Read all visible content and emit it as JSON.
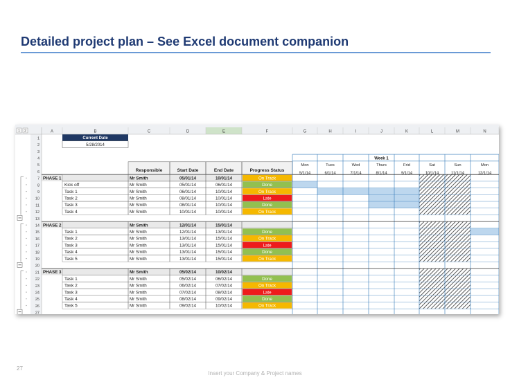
{
  "slide": {
    "title": "Detailed project plan – See Excel document companion",
    "page_number": "27",
    "footer": "Insert your Company & Project names"
  },
  "sheet": {
    "outline_levels": [
      "1",
      "2"
    ],
    "columns": [
      "A",
      "B",
      "C",
      "D",
      "E",
      "F",
      "G",
      "H",
      "I",
      "J",
      "K",
      "L",
      "M",
      "N"
    ],
    "current_date_label": "Current Date",
    "current_date_value": "5/28/2014",
    "week_label": "Week 1",
    "headers": [
      "Responsible",
      "Start Date",
      "End Date",
      "Progress Status"
    ],
    "days": [
      {
        "day": "Mon",
        "date": "5/1/14"
      },
      {
        "day": "Tues",
        "date": "6/1/14"
      },
      {
        "day": "Wed",
        "date": "7/1/14"
      },
      {
        "day": "Thurs",
        "date": "8/1/14"
      },
      {
        "day": "Frid",
        "date": "9/1/14"
      },
      {
        "day": "Sat",
        "date": "10/1/14"
      },
      {
        "day": "Sun",
        "date": "11/1/14"
      },
      {
        "day": "Mon",
        "date": "12/1/14"
      }
    ],
    "rows": [
      {
        "num": "1"
      },
      {
        "num": "2"
      },
      {
        "num": "3"
      },
      {
        "num": "4"
      },
      {
        "num": "5"
      },
      {
        "num": "6"
      },
      {
        "num": "7",
        "type": "phase",
        "name": "PHASE 1",
        "resp": "Mr Smith",
        "start": "05/01/14",
        "end": "10/01/14",
        "status": "On Track"
      },
      {
        "num": "8",
        "name": "Kick off",
        "resp": "Mr Smith",
        "start": "05/01/14",
        "end": "06/01/14",
        "status": "Done"
      },
      {
        "num": "9",
        "name": "Task 1",
        "resp": "Mr Smith",
        "start": "06/01/14",
        "end": "10/01/14",
        "status": "On Track"
      },
      {
        "num": "10",
        "name": "Task 2",
        "resp": "Mr Smith",
        "start": "08/01/14",
        "end": "10/01/14",
        "status": "Late"
      },
      {
        "num": "11",
        "name": "Task 3",
        "resp": "Mr Smith",
        "start": "08/01/14",
        "end": "10/01/14",
        "status": "Done"
      },
      {
        "num": "12",
        "name": "Task 4",
        "resp": "Mr Smith",
        "start": "10/01/14",
        "end": "10/01/14",
        "status": "On Track"
      },
      {
        "num": "13"
      },
      {
        "num": "14",
        "type": "phase",
        "name": "PHASE 2",
        "resp": "Mr Smith",
        "start": "12/01/14",
        "end": "15/01/14",
        "status": ""
      },
      {
        "num": "15",
        "name": "Task 1",
        "resp": "Mr Smith",
        "start": "12/01/14",
        "end": "13/01/14",
        "status": "Done"
      },
      {
        "num": "16",
        "name": "Task 2",
        "resp": "Mr Smith",
        "start": "13/01/14",
        "end": "15/01/14",
        "status": "On Track"
      },
      {
        "num": "17",
        "name": "Task 3",
        "resp": "Mr Smith",
        "start": "13/01/14",
        "end": "15/01/14",
        "status": "Late"
      },
      {
        "num": "18",
        "name": "Task 4",
        "resp": "Mr Smith",
        "start": "13/01/14",
        "end": "15/01/14",
        "status": "Done"
      },
      {
        "num": "19",
        "name": "Task 5",
        "resp": "Mr Smith",
        "start": "13/01/14",
        "end": "15/01/14",
        "status": "On Track"
      },
      {
        "num": "20"
      },
      {
        "num": "21",
        "type": "phase",
        "name": "PHASE 3",
        "resp": "Mr Smith",
        "start": "05/02/14",
        "end": "10/02/14",
        "status": ""
      },
      {
        "num": "22",
        "name": "Task 1",
        "resp": "Mr Smith",
        "start": "05/02/14",
        "end": "06/02/14",
        "status": "Done"
      },
      {
        "num": "23",
        "name": "Task 2",
        "resp": "Mr Smith",
        "start": "06/02/14",
        "end": "07/02/14",
        "status": "On Track"
      },
      {
        "num": "24",
        "name": "Task 3",
        "resp": "Mr Smith",
        "start": "07/02/14",
        "end": "08/02/14",
        "status": "Late"
      },
      {
        "num": "25",
        "name": "Task 4",
        "resp": "Mr Smith",
        "start": "08/02/14",
        "end": "09/02/14",
        "status": "Done"
      },
      {
        "num": "26",
        "name": "Task 5",
        "resp": "Mr Smith",
        "start": "09/02/14",
        "end": "10/02/14",
        "status": "On Track"
      },
      {
        "num": "27"
      }
    ],
    "status_colors": {
      "Done": "#92c050",
      "On Track": "#f5b800",
      "Late": "#ee1c1c"
    },
    "gantt_fill": "#bdd7ee",
    "gantt_line": "#2e75b6",
    "header_fill": "#1f3864",
    "weekend_hatch": "#333333"
  }
}
